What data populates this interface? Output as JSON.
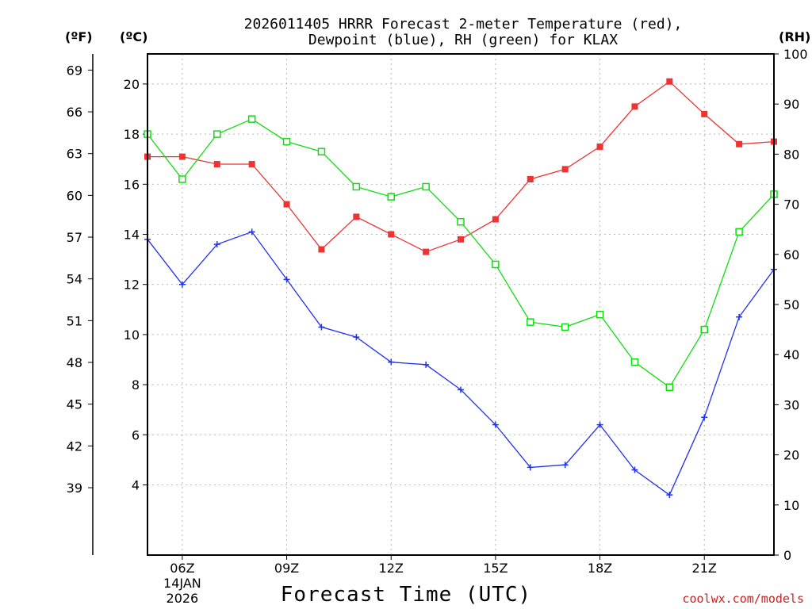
{
  "chart_data": {
    "type": "line",
    "title_line1": "2026011405 HRRR Forecast 2-meter Temperature (red),",
    "title_line2": "Dewpoint (blue), RH (green) for KLAX",
    "units": {
      "fahrenheit": "(ºF)",
      "celsius": "(ºC)",
      "rh": "(RH)"
    },
    "xlabel": "Forecast Time (UTC)",
    "credit": "coolwx.com/models",
    "x_hours": [
      5,
      6,
      7,
      8,
      9,
      10,
      11,
      12,
      13,
      14,
      15,
      16,
      17,
      18,
      19,
      20,
      21,
      22,
      23
    ],
    "xlim": [
      5,
      23
    ],
    "x_ticks": [
      {
        "hour": 6,
        "label": "06Z",
        "sub1": "14JAN",
        "sub2": "2026"
      },
      {
        "hour": 9,
        "label": "09Z"
      },
      {
        "hour": 12,
        "label": "12Z"
      },
      {
        "hour": 15,
        "label": "15Z"
      },
      {
        "hour": 18,
        "label": "18Z"
      },
      {
        "hour": 21,
        "label": "21Z"
      }
    ],
    "ylim_c": [
      1.2,
      21.2
    ],
    "y_ticks_c": [
      "4",
      "6",
      "8",
      "10",
      "12",
      "14",
      "16",
      "18",
      "20"
    ],
    "y_ticks_f": [
      "39",
      "42",
      "45",
      "48",
      "51",
      "54",
      "57",
      "60",
      "63",
      "66",
      "69"
    ],
    "ylim_rh": [
      0,
      100
    ],
    "y_ticks_rh": [
      "0",
      "10",
      "20",
      "30",
      "40",
      "50",
      "60",
      "70",
      "80",
      "90",
      "100"
    ],
    "grid": true,
    "series": [
      {
        "name": "Temperature",
        "axis": "c",
        "color": "#ee3333",
        "marker": "filled-square",
        "values": [
          17.1,
          17.1,
          16.8,
          16.8,
          15.2,
          13.4,
          14.7,
          14.0,
          13.3,
          13.8,
          14.6,
          16.2,
          16.6,
          17.5,
          19.1,
          20.1,
          18.8,
          17.6,
          17.7
        ]
      },
      {
        "name": "Dewpoint",
        "axis": "c",
        "color": "#2233ee",
        "marker": "plus",
        "values": [
          13.8,
          12.0,
          13.6,
          14.1,
          12.2,
          10.3,
          9.9,
          8.9,
          8.8,
          7.8,
          6.4,
          4.7,
          4.8,
          6.4,
          4.6,
          3.6,
          6.7,
          10.7,
          12.6
        ]
      },
      {
        "name": "RH",
        "axis": "rh",
        "color": "#11dd11",
        "marker": "open-square",
        "values": [
          84,
          75,
          84,
          87,
          82.5,
          80.5,
          73.5,
          71.5,
          73.5,
          66.5,
          58,
          46.5,
          45.5,
          48,
          38.5,
          33.5,
          45,
          64.5,
          72
        ]
      }
    ]
  }
}
